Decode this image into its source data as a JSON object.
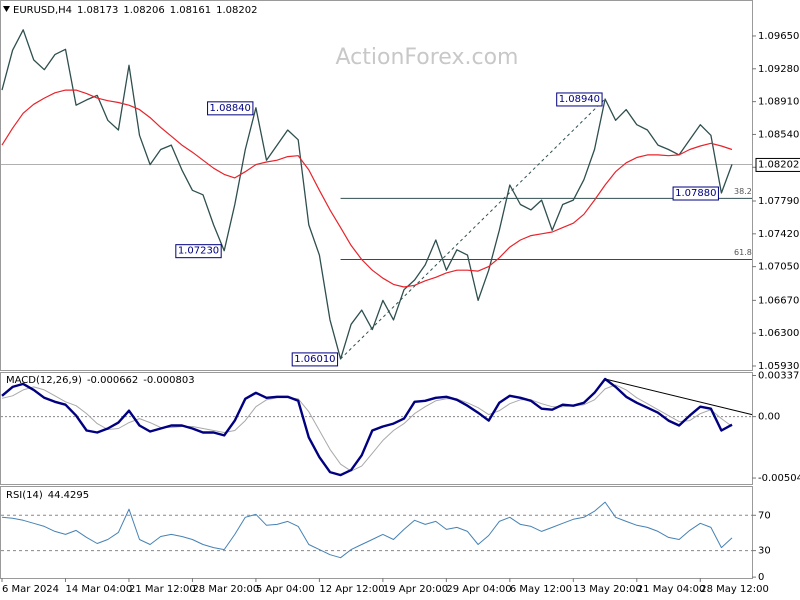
{
  "chart_data": [
    {
      "type": "price",
      "symbol": "EURUSD,H4",
      "ohlc": [
        1.08173,
        1.08206,
        1.08161,
        1.08202
      ],
      "watermark": "ActionForex.com",
      "series": [
        {
          "color": "#2f4f4f",
          "values": [
            1.0904,
            1.0949,
            1.0972,
            1.0938,
            1.0927,
            1.0944,
            1.095,
            1.0887,
            1.0893,
            1.0898,
            1.087,
            1.0859,
            1.0932,
            1.0853,
            1.082,
            1.0837,
            1.0842,
            1.0814,
            1.0791,
            1.0786,
            1.0752,
            1.0723,
            1.0775,
            1.0837,
            1.0884,
            1.0825,
            1.0842,
            1.0859,
            1.0848,
            1.0752,
            1.0718,
            1.0645,
            1.0601,
            1.064,
            1.0656,
            1.0634,
            1.0667,
            1.0645,
            1.0679,
            1.069,
            1.0707,
            1.0735,
            1.0701,
            1.0724,
            1.0718,
            1.0667,
            1.0701,
            1.0746,
            1.0797,
            1.0775,
            1.0769,
            1.078,
            1.0746,
            1.0775,
            1.078,
            1.0803,
            1.0837,
            1.0894,
            1.087,
            1.0882,
            1.0865,
            1.0859,
            1.0842,
            1.0837,
            1.0831,
            1.0848,
            1.0865,
            1.0853,
            1.0788,
            1.08202
          ]
        },
        {
          "color": "#e8232b",
          "values": [
            1.0842,
            1.0861,
            1.0878,
            1.0888,
            1.0895,
            1.0901,
            1.0904,
            1.0904,
            1.09,
            1.0895,
            1.0892,
            1.089,
            1.0887,
            1.0882,
            1.0873,
            1.0862,
            1.0852,
            1.0842,
            1.0834,
            1.0825,
            1.0816,
            1.0809,
            1.0805,
            1.0812,
            1.082,
            1.0823,
            1.0825,
            1.0829,
            1.083,
            1.0814,
            1.0791,
            1.0769,
            1.0749,
            1.0729,
            1.0713,
            1.0701,
            1.0692,
            1.0685,
            1.0682,
            1.0684,
            1.0689,
            1.0693,
            1.0698,
            1.0701,
            1.0701,
            1.07,
            1.0705,
            1.0715,
            1.0727,
            1.0735,
            1.074,
            1.0742,
            1.0744,
            1.0749,
            1.0754,
            1.0764,
            1.078,
            1.0797,
            1.0812,
            1.0822,
            1.0828,
            1.0831,
            1.0831,
            1.083,
            1.0831,
            1.0837,
            1.0841,
            1.0844,
            1.0841,
            1.0837
          ]
        }
      ],
      "ylim": [
        1.05885,
        1.10033
      ],
      "yticks": [
        {
          "value": 1.0965,
          "label": "1.09650"
        },
        {
          "value": 1.0928,
          "label": "1.09280"
        },
        {
          "value": 1.0891,
          "label": "1.08910"
        },
        {
          "value": 1.0854,
          "label": "1.08540"
        },
        {
          "value": 1.0817,
          "label": "1.08170"
        },
        {
          "value": 1.0779,
          "label": "1.07790"
        },
        {
          "value": 1.0742,
          "label": "1.07420"
        },
        {
          "value": 1.0705,
          "label": "1.07050"
        },
        {
          "value": 1.0667,
          "label": "1.06670"
        },
        {
          "value": 1.063,
          "label": "1.06300"
        },
        {
          "value": 1.0593,
          "label": "1.05930"
        }
      ],
      "annotations": [
        {
          "value": 1.0884,
          "label": "1.08840"
        },
        {
          "value": 1.0723,
          "label": "1.07230"
        },
        {
          "value": 1.0601,
          "label": "1.06010"
        },
        {
          "value": 1.0894,
          "label": "1.08940"
        },
        {
          "value": 1.0788,
          "label": "1.07880"
        }
      ],
      "trendline": [
        1.0601,
        1.0894
      ],
      "fib_levels": [
        {
          "ratio": 38.2,
          "price": 1.0782
        },
        {
          "ratio": 61.8,
          "price": 1.0713
        }
      ]
    },
    {
      "type": "macd",
      "title": "MACD(12,26,9)",
      "readout": [
        -0.000662,
        -0.000803
      ],
      "series": [
        {
          "color": "#000080",
          "values": [
            0.001707,
            0.002439,
            0.002683,
            0.002195,
            0.001545,
            0.00122,
            0.000976,
            8.1e-05,
            -0.001138,
            -0.001301,
            -0.000976,
            -0.000488,
            0.000488,
            -0.000732,
            -0.00122,
            -0.000976,
            -0.000732,
            -0.000732,
            -0.000976,
            -0.001301,
            -0.001301,
            -0.001545,
            -0.000325,
            0.001463,
            0.001951,
            0.001545,
            0.001626,
            0.001626,
            0.001301,
            -0.001707,
            -0.003333,
            -0.004553,
            -0.004797,
            -0.00439,
            -0.003171,
            -0.001138,
            -0.000813,
            -0.000569,
            -0.000163,
            0.00122,
            0.001301,
            0.001545,
            0.001626,
            0.001382,
            0.000894,
            0.000325,
            -0.000325,
            0.001138,
            0.001707,
            0.001545,
            0.001301,
            0.00065,
            0.000569,
            0.000976,
            0.000894,
            0.001138,
            0.001951,
            0.003089,
            0.002439,
            0.001626,
            0.001138,
            0.000732,
            0.000325,
            -0.000325,
            -0.000732,
            8.1e-05,
            0.000813,
            0.00065,
            -0.001138,
            -0.000662
          ]
        },
        {
          "color": "#a9a9a9",
          "values": [
            0.0015,
            0.001707,
            0.002195,
            0.002439,
            0.002195,
            0.001707,
            0.00122,
            0.000894,
            0.000244,
            -0.000569,
            -0.001057,
            -0.000976,
            -0.000488,
            -0.000163,
            -0.000488,
            -0.000894,
            -0.000894,
            -0.000813,
            -0.000813,
            -0.000976,
            -0.001138,
            -0.001301,
            -0.001138,
            -0.000325,
            0.000813,
            0.001382,
            0.001545,
            0.001545,
            0.001463,
            0.000407,
            -0.001138,
            -0.002683,
            -0.003902,
            -0.004472,
            -0.004065,
            -0.003008,
            -0.001951,
            -0.001138,
            -0.000569,
            0.000244,
            0.000813,
            0.001301,
            0.001463,
            0.001463,
            0.001138,
            0.000732,
            0.000163,
            0.000488,
            0.001057,
            0.001382,
            0.001382,
            0.001057,
            0.000813,
            0.000813,
            0.000894,
            0.000976,
            0.001382,
            0.002276,
            0.002602,
            0.002195,
            0.001545,
            0.001057,
            0.000569,
            8.1e-05,
            -0.000407,
            -0.000325,
            0.000244,
            0.000569,
            -0.000163,
            -0.000803
          ]
        }
      ],
      "ylim": [
        -0.00553,
        0.00358
      ],
      "yticks": [
        0.003375,
        {
          "value": 0,
          "label": "0.00"
        },
        -0.00504
      ],
      "levels": [
        0
      ],
      "trendline": [
        0.003089,
        0.000163
      ]
    },
    {
      "type": "rsi",
      "title": "RSI(14)",
      "readout": 44.4295,
      "color": "#4682b4",
      "values": [
        67.7,
        66.6,
        64.3,
        60.9,
        57.4,
        51.7,
        48.3,
        52.9,
        44.9,
        38.0,
        42.6,
        50.6,
        76.9,
        42.6,
        36.9,
        46.0,
        48.3,
        46.0,
        42.6,
        36.9,
        33.4,
        31.1,
        48.3,
        67.7,
        71.1,
        58.6,
        59.7,
        63.1,
        57.4,
        36.9,
        31.1,
        25.4,
        22.0,
        31.1,
        36.9,
        42.6,
        48.3,
        42.6,
        54.0,
        64.3,
        59.7,
        63.1,
        54.0,
        56.3,
        51.7,
        36.9,
        47.1,
        63.1,
        67.7,
        59.7,
        57.4,
        51.7,
        56.3,
        60.9,
        65.4,
        67.7,
        74.6,
        84.9,
        67.7,
        63.1,
        58.6,
        56.3,
        51.7,
        44.9,
        42.6,
        52.9,
        60.9,
        56.3,
        33.4,
        44.4295
      ],
      "ylim": [
        -1,
        102
      ],
      "yticks": [
        70,
        30,
        0
      ],
      "levels": [
        70,
        30
      ],
      "categories": [
        "6 Mar 2024",
        null,
        null,
        null,
        null,
        null,
        "14 Mar 04:00",
        null,
        null,
        null,
        null,
        null,
        "21 Mar 12:00",
        null,
        null,
        null,
        null,
        null,
        "28 Mar 20:00",
        null,
        null,
        null,
        null,
        null,
        "5 Apr 04:00",
        null,
        null,
        null,
        null,
        null,
        "12 Apr 12:00",
        null,
        null,
        null,
        null,
        null,
        "19 Apr 20:00",
        null,
        null,
        null,
        null,
        null,
        "29 Apr 04:00",
        null,
        null,
        null,
        null,
        null,
        "6 May 12:00",
        null,
        null,
        null,
        null,
        null,
        "13 May 20:00",
        null,
        null,
        null,
        null,
        null,
        "21 May 04:00",
        null,
        null,
        null,
        null,
        null,
        "28 May 12:00",
        null,
        null,
        null
      ]
    }
  ]
}
